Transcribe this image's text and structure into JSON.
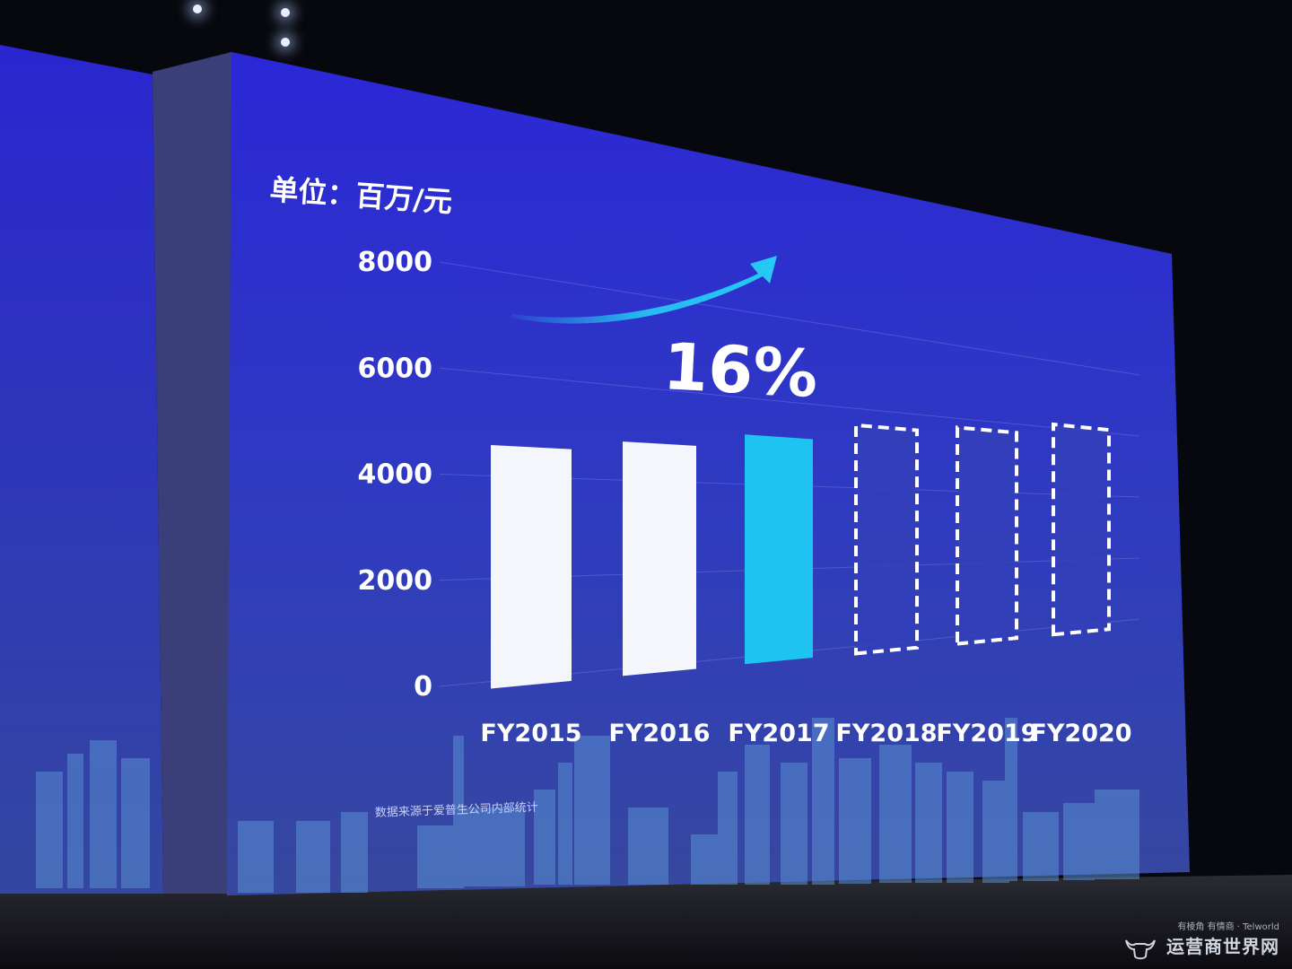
{
  "chart_data": {
    "type": "bar",
    "unit_label": "单位：百万/元",
    "growth_label": "16%",
    "categories": [
      "FY2015",
      "FY2016",
      "FY2017",
      "FY2018",
      "FY2019",
      "FY2020"
    ],
    "values": [
      4600,
      4820,
      5150,
      5580,
      5750,
      6100
    ],
    "bar_styles": [
      "actual",
      "actual",
      "highlight",
      "projected",
      "projected",
      "projected"
    ],
    "y_ticks": [
      "0",
      "2000",
      "4000",
      "6000",
      "8000"
    ],
    "ylim": [
      0,
      8000
    ],
    "grid": true,
    "source_note": "数据来源于爱普生公司内部统计"
  },
  "colors": {
    "screen_top": "#2d29d8",
    "screen_bottom": "#2f3ca8",
    "actual_bar": "#f4f6fb",
    "highlight_bar": "#1fc3f2",
    "projected_fill": "#3440b8",
    "projected_border": "#ffffff",
    "arrow": "#26c9f5"
  },
  "watermark": {
    "tagline": "有棱角 有情商 · Telworld",
    "brand": "运营商世界网"
  }
}
